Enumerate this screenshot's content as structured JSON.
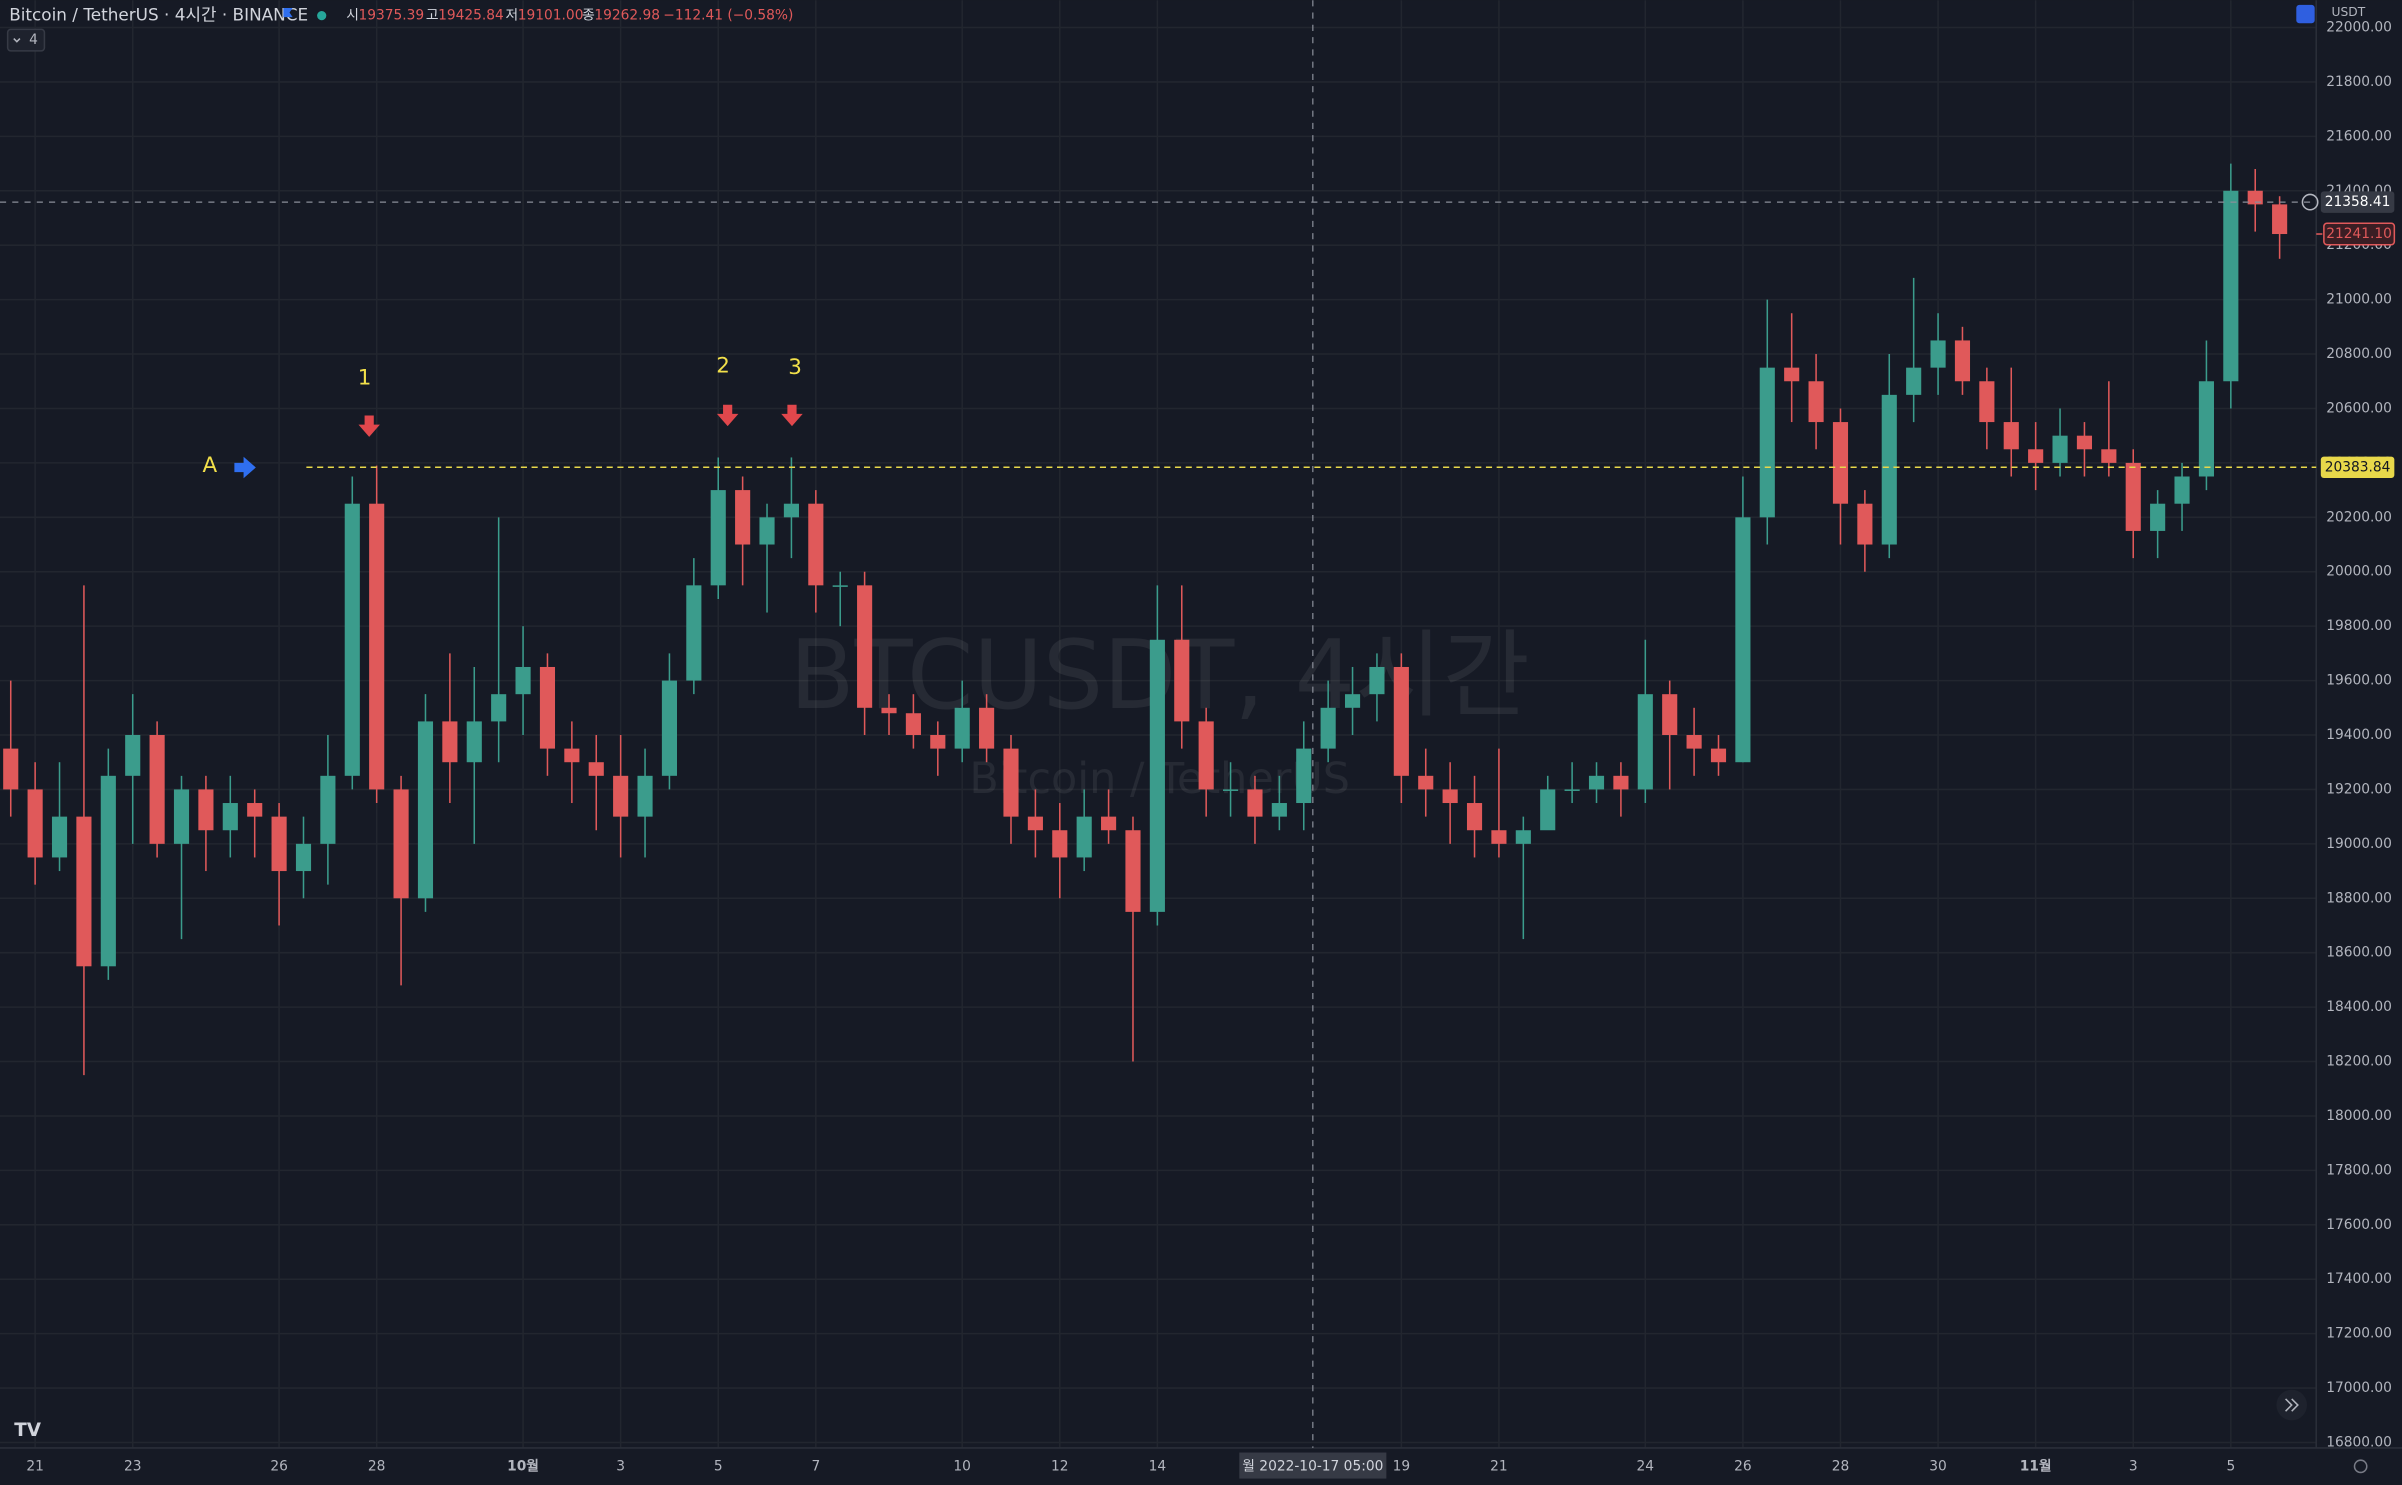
{
  "header": {
    "symbol": "Bitcoin / TetherUS · 4시간 · BINANCE",
    "ohlc": [
      {
        "label": "시",
        "value": "19375.39"
      },
      {
        "label": "고",
        "value": "19425.84"
      },
      {
        "label": "저",
        "value": "19101.00"
      },
      {
        "label": "종",
        "value": "19262.98"
      }
    ],
    "change": "−112.41 (−0.58%)",
    "indicator_count": "4",
    "currency": "USDT"
  },
  "watermark": {
    "title": "BTCUSDT, 4시간",
    "subtitle": "Bitcoin / TetherUS"
  },
  "annotations": [
    "1",
    "2",
    "3",
    "A"
  ],
  "crosshair_label": "월 2022-10-17  05:00",
  "chart_data": {
    "type": "candlestick",
    "up_color": "#3b9c8c",
    "down_color": "#e0595a",
    "open": [
      19350,
      19200,
      18950,
      19100,
      18550,
      19250,
      19400,
      19000,
      19200,
      19050,
      19150,
      19100,
      18900,
      19000,
      19250,
      20250,
      19200,
      18800,
      19450,
      19300,
      19450,
      19550,
      19650,
      19350,
      19300,
      19250,
      19100,
      19250,
      19600,
      19950,
      20300,
      20100,
      20200,
      20250,
      19950,
      19950,
      19500,
      19480,
      19400,
      19350,
      19500,
      19350,
      19100,
      19050,
      18950,
      19100,
      19050,
      18750,
      19750,
      19450,
      19200,
      19200,
      19100,
      19150,
      19350,
      19500,
      19550,
      19650,
      19250,
      19200,
      19150,
      19050,
      19000,
      19050,
      19200,
      19200,
      19250,
      19200,
      19550,
      19400,
      19350,
      19300,
      20200,
      20750,
      20700,
      20550,
      20250,
      20100,
      20650,
      20750,
      20850,
      20700,
      20550,
      20450,
      20400,
      20500,
      20450,
      20400,
      20150,
      20250,
      20350,
      20700,
      21400,
      21350
    ],
    "high": [
      19600,
      19300,
      19300,
      19950,
      19350,
      19550,
      19450,
      19250,
      19250,
      19250,
      19200,
      19150,
      19100,
      19400,
      20350,
      20390,
      19250,
      19550,
      19700,
      19650,
      20200,
      19800,
      19700,
      19450,
      19400,
      19400,
      19350,
      19700,
      20050,
      20420,
      20350,
      20250,
      20420,
      20300,
      20000,
      20000,
      19550,
      19550,
      19450,
      19600,
      19550,
      19400,
      19200,
      19150,
      19200,
      19200,
      19100,
      19950,
      19950,
      19500,
      19300,
      19250,
      19250,
      19450,
      19600,
      19650,
      19700,
      19700,
      19350,
      19300,
      19250,
      19350,
      19100,
      19250,
      19300,
      19300,
      19300,
      19750,
      19600,
      19500,
      19400,
      20350,
      21000,
      20950,
      20800,
      20600,
      20300,
      20800,
      21080,
      20950,
      20900,
      20750,
      20750,
      20550,
      20600,
      20550,
      20700,
      20450,
      20300,
      20400,
      20850,
      21500,
      21480,
      21380
    ],
    "low": [
      19100,
      18850,
      18900,
      18150,
      18500,
      19000,
      18950,
      18650,
      18900,
      18950,
      18950,
      18700,
      18800,
      18850,
      19200,
      19150,
      18480,
      18750,
      19150,
      19000,
      19300,
      19400,
      19250,
      19150,
      19050,
      18950,
      18950,
      19200,
      19550,
      19900,
      19950,
      19850,
      20050,
      19850,
      19800,
      19400,
      19400,
      19350,
      19250,
      19300,
      19300,
      19000,
      18950,
      18800,
      18900,
      19000,
      18200,
      18700,
      19350,
      19100,
      19100,
      19000,
      19050,
      19050,
      19300,
      19400,
      19450,
      19150,
      19100,
      19000,
      18950,
      18950,
      18650,
      19100,
      19150,
      19150,
      19100,
      19150,
      19200,
      19250,
      19250,
      19300,
      20100,
      20550,
      20450,
      20100,
      20000,
      20050,
      20550,
      20650,
      20650,
      20450,
      20350,
      20300,
      20350,
      20350,
      20350,
      20050,
      20050,
      20150,
      20300,
      20600,
      21250,
      21150
    ],
    "close": [
      19200,
      18950,
      19100,
      18550,
      19250,
      19400,
      19000,
      19200,
      19050,
      19150,
      19100,
      18900,
      19000,
      19250,
      20250,
      19200,
      18800,
      19450,
      19300,
      19450,
      19550,
      19650,
      19350,
      19300,
      19250,
      19100,
      19250,
      19600,
      19950,
      20300,
      20100,
      20200,
      20250,
      19950,
      19950,
      19500,
      19480,
      19400,
      19350,
      19500,
      19350,
      19100,
      19050,
      18950,
      19100,
      19050,
      18750,
      19750,
      19450,
      19200,
      19200,
      19100,
      19150,
      19350,
      19500,
      19550,
      19650,
      19250,
      19200,
      19150,
      19050,
      19000,
      19050,
      19200,
      19200,
      19250,
      19200,
      19550,
      19400,
      19350,
      19300,
      20200,
      20750,
      20700,
      20550,
      20250,
      20100,
      20650,
      20750,
      20850,
      20700,
      20550,
      20450,
      20400,
      20500,
      20450,
      20400,
      20150,
      20250,
      20350,
      20700,
      21400,
      21350,
      21241.1
    ],
    "xlim": [
      -0.44,
      94.5
    ],
    "xticks": [
      {
        "value": 1,
        "label": "21"
      },
      {
        "value": 5,
        "label": "23"
      },
      {
        "value": 11,
        "label": "26"
      },
      {
        "value": 15,
        "label": "28"
      },
      {
        "value": 21,
        "label": "10월"
      },
      {
        "value": 25,
        "label": "3"
      },
      {
        "value": 29,
        "label": "5"
      },
      {
        "value": 33,
        "label": "7"
      },
      {
        "value": 39,
        "label": "10"
      },
      {
        "value": 43,
        "label": "12"
      },
      {
        "value": 47,
        "label": "14"
      },
      {
        "value": 57,
        "label": "19"
      },
      {
        "value": 61,
        "label": "21"
      },
      {
        "value": 67,
        "label": "24"
      },
      {
        "value": 71,
        "label": "26"
      },
      {
        "value": 75,
        "label": "28"
      },
      {
        "value": 79,
        "label": "30"
      },
      {
        "value": 83,
        "label": "11월"
      },
      {
        "value": 87,
        "label": "3"
      },
      {
        "value": 91,
        "label": "5"
      }
    ],
    "ylim": [
      16780,
      22100
    ],
    "yticks": [
      {
        "value": 16800,
        "label": "16800.00"
      },
      {
        "value": 17000,
        "label": "17000.00"
      },
      {
        "value": 17200,
        "label": "17200.00"
      },
      {
        "value": 17400,
        "label": "17400.00"
      },
      {
        "value": 17600,
        "label": "17600.00"
      },
      {
        "value": 17800,
        "label": "17800.00"
      },
      {
        "value": 18000,
        "label": "18000.00"
      },
      {
        "value": 18200,
        "label": "18200.00"
      },
      {
        "value": 18400,
        "label": "18400.00"
      },
      {
        "value": 18600,
        "label": "18600.00"
      },
      {
        "value": 18800,
        "label": "18800.00"
      },
      {
        "value": 19000,
        "label": "19000.00"
      },
      {
        "value": 19200,
        "label": "19200.00"
      },
      {
        "value": 19400,
        "label": "19400.00"
      },
      {
        "value": 19600,
        "label": "19600.00"
      },
      {
        "value": 19800,
        "label": "19800.00"
      },
      {
        "value": 20000,
        "label": "20000.00"
      },
      {
        "value": 20200,
        "label": "20200.00"
      },
      {
        "value": 20400,
        "label": "20400.00"
      },
      {
        "value": 20600,
        "label": "20600.00"
      },
      {
        "value": 20800,
        "label": "20800.00"
      },
      {
        "value": 21000,
        "label": "21000.00"
      },
      {
        "value": 21200,
        "label": "21200.00"
      },
      {
        "value": 21400,
        "label": "21400.00"
      },
      {
        "value": 21600,
        "label": "21600.00"
      },
      {
        "value": 21800,
        "label": "21800.00"
      },
      {
        "value": 22000,
        "label": "22000.00"
      }
    ],
    "grid": true,
    "crosshair_price": 21358.41,
    "level": 20383.84,
    "level_color": "#e8d84a",
    "last_price": {
      "value": 21241.1,
      "label": "21241.10"
    }
  }
}
